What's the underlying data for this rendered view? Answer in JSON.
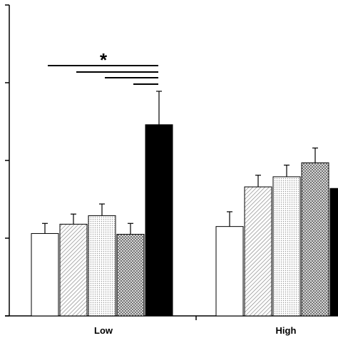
{
  "chart_data": {
    "type": "bar",
    "title": "",
    "xlabel": "",
    "ylabel": "",
    "ylim": [
      0,
      4
    ],
    "yticks": [
      0,
      1,
      2,
      3,
      4
    ],
    "ytick_labels_visible": false,
    "grid": false,
    "legend": "none",
    "categories": [
      "Low",
      "High"
    ],
    "series": [
      {
        "fill": "white",
        "color": "#ffffff",
        "values": [
          1.06,
          1.15
        ],
        "errors": [
          0.13,
          0.19
        ]
      },
      {
        "fill": "diagonal-hatch",
        "color": "#9a9a9a",
        "values": [
          1.18,
          1.66
        ],
        "errors": [
          0.13,
          0.15
        ]
      },
      {
        "fill": "dotted",
        "color": "#bdbdbd",
        "values": [
          1.29,
          1.79
        ],
        "errors": [
          0.15,
          0.15
        ]
      },
      {
        "fill": "crosshatch",
        "color": "#7a7a7a",
        "values": [
          1.05,
          1.97
        ],
        "errors": [
          0.14,
          0.19
        ]
      },
      {
        "fill": "black",
        "color": "#000000",
        "values": [
          2.46,
          1.64
        ],
        "errors": [
          0.43,
          0.0
        ]
      }
    ],
    "annotations": [
      {
        "text": "*",
        "type": "significance",
        "category": "Low",
        "brackets": 4
      }
    ]
  }
}
